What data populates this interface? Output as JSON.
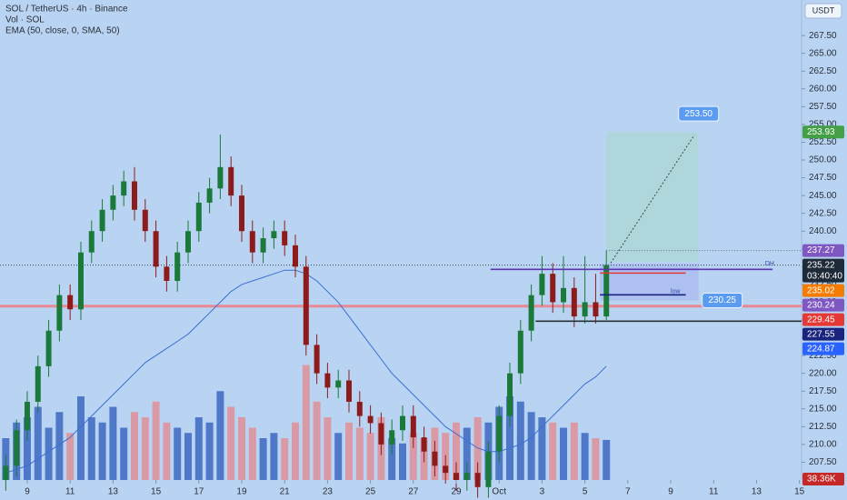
{
  "chart_data": {
    "type": "candlestick",
    "title": "SOL / TetherUS · 4h · Binance",
    "indicators": [
      "Vol · SOL",
      "EMA (50, close, 0, SMA, 50)"
    ],
    "currency": "USDT",
    "x": [
      8,
      8.5,
      9,
      9.5,
      10,
      10.5,
      11,
      11.5,
      12,
      12.5,
      13,
      13.5,
      14,
      14.5,
      15,
      15.5,
      16,
      16.5,
      17,
      17.5,
      18,
      18.5,
      19,
      19.5,
      20,
      20.5,
      21,
      21.5,
      22,
      22.5,
      23,
      23.5,
      24,
      24.5,
      25,
      25.5,
      26,
      26.5,
      27,
      27.5,
      28,
      28.5,
      29,
      29.5,
      30,
      30.5,
      31,
      31.5,
      32,
      32.5,
      33,
      33.5,
      34,
      34.5,
      35,
      35.5,
      36
    ],
    "open": [
      205,
      207,
      212,
      216,
      221,
      226,
      231,
      229,
      237,
      240,
      243,
      245,
      247,
      243,
      240,
      235,
      233,
      237,
      240,
      244,
      246,
      249,
      245,
      240,
      237,
      239,
      240,
      238,
      235,
      224,
      220,
      218,
      219,
      216,
      214,
      213,
      210,
      212,
      214,
      211,
      209,
      207,
      206,
      205,
      206,
      204,
      209,
      214,
      220,
      226,
      231,
      234,
      230,
      232,
      228,
      230,
      228
    ],
    "high": [
      208.5,
      213.5,
      217.5,
      222.5,
      227.5,
      232.5,
      232.5,
      238.5,
      241.5,
      244.5,
      246.5,
      248.5,
      249,
      244.5,
      241.5,
      236.5,
      238.5,
      241.5,
      245.5,
      247.5,
      253.6,
      250.5,
      246.5,
      241.5,
      240.5,
      241.5,
      241.5,
      239.5,
      236.5,
      225.5,
      221.5,
      220.5,
      220.5,
      217.5,
      215.5,
      214.5,
      213.5,
      215.5,
      215.5,
      212.5,
      210.5,
      208.5,
      207.5,
      207.5,
      207.5,
      210.5,
      215.5,
      221.5,
      227.5,
      232.5,
      236.5,
      235.5,
      236.5,
      233.5,
      236.5,
      234,
      237.3
    ],
    "low": [
      203.5,
      205.5,
      210.5,
      214.5,
      219.5,
      224.5,
      227.5,
      227.5,
      235.5,
      238.5,
      241.5,
      243.5,
      241.5,
      238.5,
      233.5,
      231.5,
      231.5,
      235.5,
      238.5,
      242.5,
      244.5,
      243.5,
      238.5,
      235.5,
      235.5,
      237.5,
      236.5,
      233.5,
      222.5,
      218.5,
      216.5,
      216.5,
      214.5,
      212.5,
      211.5,
      208.5,
      208.5,
      210.5,
      209.5,
      207.5,
      205.5,
      204.5,
      203.5,
      203.5,
      202.5,
      202.5,
      207.5,
      212.5,
      218.5,
      224.5,
      229.5,
      228.5,
      228.5,
      226.5,
      227,
      227,
      227.5
    ],
    "close": [
      207,
      212,
      216,
      221,
      226,
      231,
      229,
      237,
      240,
      243,
      245,
      247,
      243,
      240,
      235,
      233,
      237,
      240,
      244,
      246,
      249,
      245,
      240,
      237,
      239,
      240,
      238,
      235,
      224,
      220,
      218,
      219,
      216,
      214,
      213,
      210,
      212,
      214,
      211,
      209,
      207,
      206,
      205,
      206,
      204,
      209,
      214,
      220,
      226,
      231,
      234,
      230,
      232,
      228,
      230,
      228,
      235.22
    ],
    "volume": [
      40,
      55,
      60,
      70,
      50,
      65,
      45,
      80,
      60,
      55,
      70,
      50,
      65,
      60,
      75,
      55,
      50,
      45,
      60,
      55,
      85,
      70,
      60,
      50,
      40,
      45,
      40,
      55,
      110,
      75,
      60,
      45,
      55,
      50,
      45,
      60,
      40,
      35,
      45,
      40,
      50,
      45,
      55,
      50,
      60,
      55,
      70,
      80,
      75,
      65,
      60,
      55,
      50,
      55,
      45,
      40,
      38.36
    ],
    "ema": [
      206,
      206.5,
      207,
      208,
      209,
      210,
      211,
      212.5,
      214,
      215.5,
      217,
      218.5,
      220,
      221.5,
      222.5,
      223.5,
      224.5,
      225.5,
      227,
      228.5,
      230,
      231.5,
      232.5,
      233,
      233.5,
      234,
      234.5,
      234.5,
      234,
      233,
      231.5,
      230,
      228,
      226,
      224,
      222,
      220,
      218.5,
      217,
      215.5,
      214,
      212.5,
      211.5,
      210.5,
      209.5,
      209,
      209,
      209.5,
      210,
      211,
      212.5,
      214,
      215.5,
      217,
      218.5,
      219.5,
      221
    ],
    "colors": {
      "up": "#1b7a3a",
      "down": "#8e1b1b",
      "volume_up": "#4f78c9",
      "volume_down": "#d99aa6",
      "ema": "#3b6fd0"
    },
    "xlim": [
      7.73,
      45.1
    ],
    "ylim": [
      205,
      272.5
    ],
    "xticks": [
      9,
      11,
      13,
      15,
      17,
      19,
      21,
      23,
      25,
      27,
      29,
      {
        "value": 31,
        "label": "Oct"
      },
      {
        "value": 33,
        "label": "3"
      },
      {
        "value": 35,
        "label": "5"
      },
      {
        "value": 37,
        "label": "7"
      },
      {
        "value": 39,
        "label": "9"
      },
      {
        "value": 41,
        "label": "11"
      },
      {
        "value": 43,
        "label": "13"
      },
      {
        "value": 45,
        "label": "15"
      }
    ],
    "yticks": [
      {
        "value": 207.5,
        "label": "207.50"
      },
      {
        "value": 210,
        "label": "210.00"
      },
      {
        "value": 212.5,
        "label": "212.50"
      },
      {
        "value": 215,
        "label": "215.00"
      },
      {
        "value": 217.5,
        "label": "217.50"
      },
      {
        "value": 220,
        "label": "220.00"
      },
      {
        "value": 222.5,
        "label": "222.50"
      },
      {
        "value": 225,
        "label": "225.00"
      },
      {
        "value": 227.5,
        "label": "227.50"
      },
      {
        "value": 230,
        "label": "230.00"
      },
      {
        "value": 232.5,
        "label": "232.50"
      },
      {
        "value": 235,
        "label": "235.00"
      },
      {
        "value": 237.5,
        "label": "237.50"
      },
      {
        "value": 240,
        "label": "240.00"
      },
      {
        "value": 242.5,
        "label": "242.50"
      },
      {
        "value": 245,
        "label": "245.00"
      },
      {
        "value": 247.5,
        "label": "247.50"
      },
      {
        "value": 250,
        "label": "250.00"
      },
      {
        "value": 252.5,
        "label": "252.50"
      },
      {
        "value": 255,
        "label": "255.00"
      },
      {
        "value": 257.5,
        "label": "257.50"
      },
      {
        "value": 260,
        "label": "260.00"
      },
      {
        "value": 262.5,
        "label": "262.50"
      },
      {
        "value": 265,
        "label": "265.00"
      },
      {
        "value": 267.5,
        "label": "267.50"
      }
    ],
    "price_tags": [
      {
        "value": 253.93,
        "color": "#43a047"
      },
      {
        "value": 237.27,
        "color": "#7e57c2"
      },
      {
        "value": 235.22,
        "color": "#1e2a38",
        "countdown": "03:40:40"
      },
      {
        "value": 235.02,
        "color": "#f57c00"
      },
      {
        "value": 230.24,
        "color": "#7e57c2"
      },
      {
        "value": 229.45,
        "color": "#e53935"
      },
      {
        "value": 227.55,
        "color": "#1a237e"
      },
      {
        "value": 224.87,
        "color": "#2962ff"
      }
    ],
    "volume_tag": {
      "value": 38.36,
      "label": "38.36K",
      "color": "#c62828"
    },
    "drawings": {
      "support": {
        "price": 229.45,
        "color": "#e88a96"
      },
      "last_price": {
        "price": 235.22,
        "color": "#37474f"
      },
      "lines": [
        {
          "price": 237.27,
          "x": [
            36.0,
            45.1
          ],
          "color": "#5a6c8a",
          "dash": true
        },
        {
          "price": 234.62,
          "x": [
            30.6,
            43.75
          ],
          "color": "#5e35b1",
          "dash": false
        },
        {
          "price": 234.1,
          "x": [
            35.7,
            39.7
          ],
          "color": "#e53935",
          "dash": false
        },
        {
          "price": 231.04,
          "x": [
            35.7,
            39.7
          ],
          "color": "#1a237e",
          "dash": false
        },
        {
          "price": 227.33,
          "x": [
            32.7,
            45.1
          ],
          "color": "#263238",
          "dash": false
        }
      ],
      "target_box": {
        "price": [
          235.7,
          253.93
        ],
        "x": [
          36.0,
          40.3
        ],
        "color": "#a8d8c8"
      },
      "stop_box": {
        "price": [
          230.25,
          235.4
        ],
        "x": [
          35.7,
          40.3
        ],
        "color": "#a9b8f0"
      },
      "arrow": {
        "x": [
          36.2,
          40.1
        ],
        "price": [
          235.5,
          253.5
        ]
      },
      "callouts": [
        {
          "x": 40.3,
          "price": 256.5,
          "value": 253.5,
          "label": "253.50"
        },
        {
          "x": 41.4,
          "price": 230.25,
          "value": 230.25
        }
      ],
      "notes": [
        {
          "x": 43.4,
          "price": 235.4,
          "text": "DH"
        },
        {
          "x": 39.0,
          "price": 231.5,
          "text": "low"
        }
      ]
    }
  }
}
